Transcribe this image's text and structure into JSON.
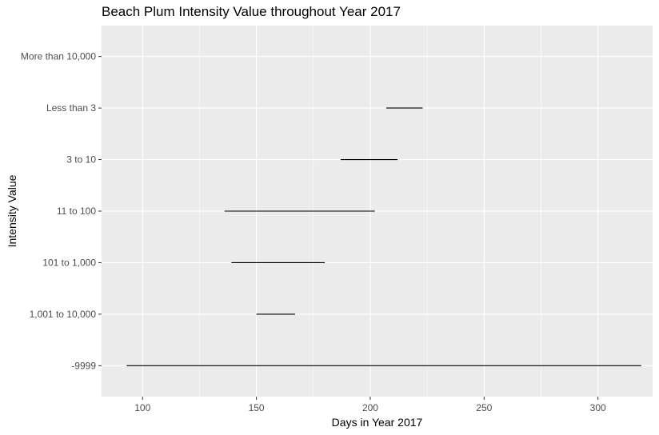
{
  "chart_data": {
    "type": "range-segments",
    "title": "Beach Plum Intensity Value throughout Year 2017",
    "xlabel": "Days in Year 2017",
    "ylabel": "Intensity Value",
    "xlim": [
      82,
      324
    ],
    "x_ticks": [
      100,
      150,
      200,
      250,
      300
    ],
    "x_tick_labels": [
      "100",
      "150",
      "200",
      "250",
      "300"
    ],
    "categories": [
      "-9999",
      "1,001 to 10,000",
      "101 to 1,000",
      "11 to 100",
      "3 to 10",
      "Less than 3",
      "More than 10,000"
    ],
    "segments": [
      {
        "category": "-9999",
        "start": 93,
        "end": 319
      },
      {
        "category": "1,001 to 10,000",
        "start": 150,
        "end": 167
      },
      {
        "category": "101 to 1,000",
        "start": 139,
        "end": 180
      },
      {
        "category": "11 to 100",
        "start": 136,
        "end": 202
      },
      {
        "category": "3 to 10",
        "start": 187,
        "end": 212
      },
      {
        "category": "Less than 3",
        "start": 207,
        "end": 223
      }
    ],
    "grid": true,
    "colors": {
      "panel": "#ebebeb",
      "grid": "#ffffff",
      "segment": "#000000",
      "tick_text": "#4d4d4d",
      "axis_text": "#000000"
    }
  }
}
